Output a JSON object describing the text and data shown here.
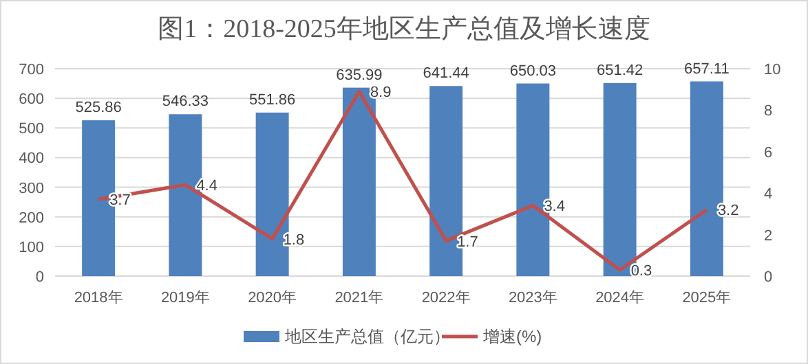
{
  "chart_data": {
    "type": "bar",
    "title": "图1：2018-2025年地区生产总值及增长速度",
    "categories": [
      "2018年",
      "2019年",
      "2020年",
      "2021年",
      "2022年",
      "2023年",
      "2024年",
      "2025年"
    ],
    "series": [
      {
        "name": "地区生产总值（亿元）",
        "color": "#4f81bd",
        "values": [
          525.86,
          546.33,
          551.86,
          635.99,
          641.44,
          650.03,
          651.42,
          657.11
        ]
      },
      {
        "name": "增速(%)",
        "type": "line",
        "axis": "y2",
        "color": "#c0504d",
        "values": [
          3.7,
          4.4,
          1.8,
          8.9,
          1.7,
          3.4,
          0.3,
          3.2
        ]
      }
    ],
    "ylim": [
      0,
      700
    ],
    "yticks": [
      0,
      100,
      200,
      300,
      400,
      500,
      600,
      700
    ],
    "y2lim": [
      0,
      10
    ],
    "y2ticks": [
      0,
      2,
      4,
      6,
      8,
      10
    ],
    "grid": "y",
    "legend": "bottom",
    "data_labels": true,
    "marker": "none",
    "line_style": "solid"
  }
}
